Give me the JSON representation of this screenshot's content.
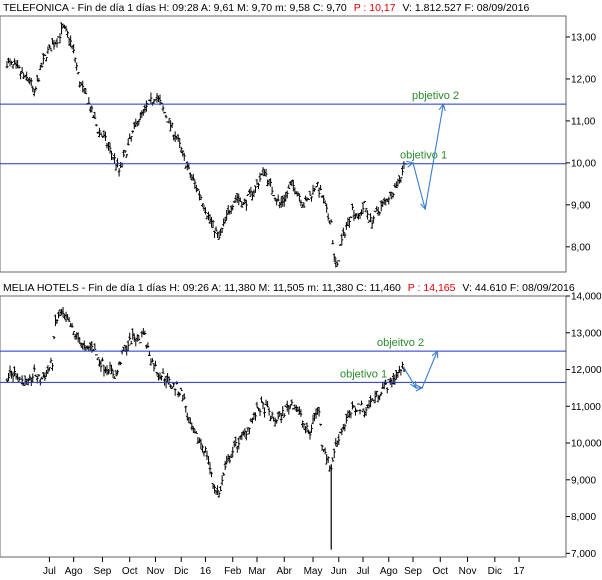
{
  "colors": {
    "price": "#000000",
    "objective_line": "#2233cc",
    "projection": "#3a7dd0",
    "annotation": "#2a8a2a",
    "header_red": "#e00000",
    "frame": "#666666"
  },
  "chart_data": [
    {
      "type": "ohlc",
      "header": {
        "prefix": "TELEFONICA - Fin de día 1 días  H: 09:28  A: 9,61  M: 9,70  m: 9,58  C: 9,70",
        "red": "P : 10,17",
        "suffix": "V: 1.812.527  F: 08/09/2016"
      },
      "ylim": [
        7.4,
        13.5
      ],
      "yticks": [
        {
          "v": 8,
          "label": "8,00"
        },
        {
          "v": 9,
          "label": "9,00"
        },
        {
          "v": 10,
          "label": "10,00"
        },
        {
          "v": 11,
          "label": "11,00"
        },
        {
          "v": 12,
          "label": "12,00"
        },
        {
          "v": 13,
          "label": "13,00"
        }
      ],
      "close_path": [
        [
          0,
          12.4
        ],
        [
          4,
          12.3
        ],
        [
          8,
          12.2
        ],
        [
          12,
          12.0
        ],
        [
          15,
          12.0
        ],
        [
          18,
          11.6
        ],
        [
          22,
          12.2
        ],
        [
          26,
          12.6
        ],
        [
          30,
          12.8
        ],
        [
          34,
          13.0
        ],
        [
          37,
          13.2
        ],
        [
          41,
          13.0
        ],
        [
          45,
          12.5
        ],
        [
          48,
          11.9
        ],
        [
          52,
          11.6
        ],
        [
          56,
          11.2
        ],
        [
          60,
          10.8
        ],
        [
          64,
          10.6
        ],
        [
          68,
          10.3
        ],
        [
          72,
          10.0
        ],
        [
          74,
          9.8
        ],
        [
          78,
          10.2
        ],
        [
          82,
          10.6
        ],
        [
          86,
          11.0
        ],
        [
          90,
          11.2
        ],
        [
          94,
          11.4
        ],
        [
          98,
          11.6
        ],
        [
          100,
          11.5
        ],
        [
          104,
          11.2
        ],
        [
          108,
          10.9
        ],
        [
          112,
          10.6
        ],
        [
          116,
          10.2
        ],
        [
          120,
          9.8
        ],
        [
          124,
          9.5
        ],
        [
          128,
          9.2
        ],
        [
          132,
          8.8
        ],
        [
          136,
          8.5
        ],
        [
          140,
          8.2
        ],
        [
          144,
          8.6
        ],
        [
          148,
          9.0
        ],
        [
          152,
          9.2
        ],
        [
          156,
          9.0
        ],
        [
          160,
          9.2
        ],
        [
          164,
          9.4
        ],
        [
          168,
          9.7
        ],
        [
          170,
          9.85
        ],
        [
          172,
          9.6
        ],
        [
          176,
          9.3
        ],
        [
          180,
          9.0
        ],
        [
          184,
          9.2
        ],
        [
          188,
          9.5
        ],
        [
          192,
          9.3
        ],
        [
          196,
          9.0
        ],
        [
          200,
          9.2
        ],
        [
          204,
          9.5
        ],
        [
          208,
          9.2
        ],
        [
          212,
          8.7
        ],
        [
          214,
          8.6
        ],
        [
          216,
          7.7
        ],
        [
          218,
          7.5
        ],
        [
          220,
          8.0
        ],
        [
          224,
          8.5
        ],
        [
          228,
          8.9
        ],
        [
          232,
          8.7
        ],
        [
          236,
          9.0
        ],
        [
          240,
          8.6
        ],
        [
          244,
          8.8
        ],
        [
          248,
          9.0
        ],
        [
          252,
          9.2
        ],
        [
          256,
          9.4
        ],
        [
          260,
          9.7
        ],
        [
          262,
          9.95
        ]
      ],
      "objective_lines": [
        {
          "value": 9.98,
          "label": "objetivo 1"
        },
        {
          "value": 11.4,
          "label": "pbjetivo 2"
        }
      ],
      "projection": [
        [
          262,
          9.95
        ],
        [
          268,
          10.0
        ],
        [
          276,
          8.9
        ],
        [
          288,
          11.4
        ]
      ],
      "shown_days": [
        0,
        288
      ]
    },
    {
      "type": "ohlc",
      "header": {
        "prefix": "MELIA HOTELS - Fin de día 1 días  H: 09:26  A: 11,380  M: 11,505  m: 11,380  C: 11,460",
        "red": "P : 14,165",
        "suffix": "V: 44.610  F: 08/09/2016"
      },
      "ylim": [
        6.9,
        14.0
      ],
      "yticks": [
        {
          "v": 7,
          "label": "7,000"
        },
        {
          "v": 8,
          "label": "8,000"
        },
        {
          "v": 9,
          "label": "9,000"
        },
        {
          "v": 10,
          "label": "10,000"
        },
        {
          "v": 11,
          "label": "11,000"
        },
        {
          "v": 12,
          "label": "12,000"
        },
        {
          "v": 13,
          "label": "13,000"
        },
        {
          "v": 14,
          "label": "14,000"
        }
      ],
      "close_path": [
        [
          0,
          11.8
        ],
        [
          6,
          11.9
        ],
        [
          10,
          11.7
        ],
        [
          14,
          11.6
        ],
        [
          18,
          11.9
        ],
        [
          22,
          11.7
        ],
        [
          26,
          11.9
        ],
        [
          30,
          12.2
        ],
        [
          32,
          13.3
        ],
        [
          36,
          13.5
        ],
        [
          40,
          13.3
        ],
        [
          44,
          13.0
        ],
        [
          48,
          12.8
        ],
        [
          52,
          12.5
        ],
        [
          56,
          12.7
        ],
        [
          60,
          12.3
        ],
        [
          64,
          12.1
        ],
        [
          68,
          12.0
        ],
        [
          72,
          11.8
        ],
        [
          76,
          12.4
        ],
        [
          80,
          12.7
        ],
        [
          84,
          12.9
        ],
        [
          88,
          12.8
        ],
        [
          90,
          13.1
        ],
        [
          92,
          12.7
        ],
        [
          96,
          12.2
        ],
        [
          100,
          11.9
        ],
        [
          104,
          11.8
        ],
        [
          108,
          11.6
        ],
        [
          112,
          11.5
        ],
        [
          116,
          11.3
        ],
        [
          118,
          11.0
        ],
        [
          120,
          10.5
        ],
        [
          124,
          10.2
        ],
        [
          128,
          10.0
        ],
        [
          132,
          9.7
        ],
        [
          136,
          8.9
        ],
        [
          140,
          8.6
        ],
        [
          144,
          9.3
        ],
        [
          148,
          9.7
        ],
        [
          152,
          10.0
        ],
        [
          156,
          10.2
        ],
        [
          160,
          10.5
        ],
        [
          164,
          10.8
        ],
        [
          168,
          11.0
        ],
        [
          172,
          10.9
        ],
        [
          176,
          10.6
        ],
        [
          180,
          10.7
        ],
        [
          184,
          10.9
        ],
        [
          188,
          11.1
        ],
        [
          192,
          10.9
        ],
        [
          196,
          10.5
        ],
        [
          200,
          10.2
        ],
        [
          202,
          10.7
        ],
        [
          206,
          10.9
        ],
        [
          208,
          10.0
        ],
        [
          210,
          9.8
        ],
        [
          212,
          9.5
        ],
        [
          214,
          9.3
        ],
        [
          216,
          9.8
        ],
        [
          220,
          10.3
        ],
        [
          224,
          10.6
        ],
        [
          228,
          10.9
        ],
        [
          232,
          11.0
        ],
        [
          236,
          10.9
        ],
        [
          240,
          11.1
        ],
        [
          244,
          11.3
        ],
        [
          248,
          11.5
        ],
        [
          252,
          11.6
        ],
        [
          256,
          11.8
        ],
        [
          260,
          12.0
        ],
        [
          262,
          12.05
        ]
      ],
      "spike": {
        "day": 214,
        "low": 7.1,
        "high": 9.4
      },
      "objective_lines": [
        {
          "value": 11.65,
          "label": "objetivo 1"
        },
        {
          "value": 12.5,
          "label": "objeitvo 2"
        }
      ],
      "projection": [
        [
          262,
          12.05
        ],
        [
          270,
          11.5
        ],
        [
          274,
          11.5
        ],
        [
          284,
          12.5
        ]
      ],
      "shown_days": [
        0,
        288
      ]
    }
  ],
  "x_axis": {
    "ticks": [
      {
        "day": -8,
        "label": "ay"
      },
      {
        "day": 28,
        "label": "Jul"
      },
      {
        "day": 44,
        "label": "Ago"
      },
      {
        "day": 63,
        "label": "Sep"
      },
      {
        "day": 81,
        "label": "Oct"
      },
      {
        "day": 98,
        "label": "Nov"
      },
      {
        "day": 115,
        "label": "Dic"
      },
      {
        "day": 131,
        "label": "16"
      },
      {
        "day": 149,
        "label": "Feb"
      },
      {
        "day": 165,
        "label": "Mar"
      },
      {
        "day": 183,
        "label": "Abr"
      },
      {
        "day": 202,
        "label": "May"
      },
      {
        "day": 219,
        "label": "Jun"
      },
      {
        "day": 235,
        "label": "Jul"
      },
      {
        "day": 252,
        "label": "Ago"
      },
      {
        "day": 268,
        "label": "Sep"
      },
      {
        "day": 286,
        "label": "Oct"
      },
      {
        "day": 304,
        "label": "Nov"
      },
      {
        "day": 322,
        "label": "Dic"
      },
      {
        "day": 338,
        "label": "17"
      }
    ]
  }
}
